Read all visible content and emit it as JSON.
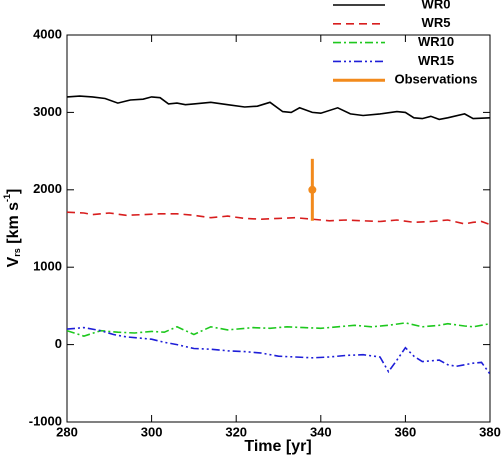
{
  "chart_data": {
    "type": "line",
    "xlabel": "Time [yr]",
    "ylabel": [
      "V",
      "rs",
      " [km s",
      "-1",
      "]"
    ],
    "xlim": [
      280,
      380
    ],
    "xticks": [
      280,
      300,
      320,
      340,
      360,
      380
    ],
    "ylim": [
      -1000,
      4000
    ],
    "yticks": [
      -1000,
      0,
      1000,
      2000,
      3000,
      4000
    ],
    "legend": "top-right",
    "series": [
      {
        "name": "WR0",
        "color": "#000000",
        "linestyle": "solid",
        "x": [
          280,
          283,
          286,
          289,
          292,
          295,
          298,
          300,
          302,
          304,
          306,
          308,
          310,
          314,
          318,
          322,
          325,
          328,
          331,
          333,
          335,
          338,
          340,
          344,
          347,
          350,
          354,
          358,
          360,
          362,
          364,
          366,
          368,
          370,
          374,
          376,
          380
        ],
        "values": [
          3200,
          3210,
          3200,
          3180,
          3120,
          3160,
          3170,
          3200,
          3190,
          3110,
          3120,
          3100,
          3110,
          3130,
          3100,
          3070,
          3080,
          3130,
          3010,
          3000,
          3060,
          3000,
          2990,
          3060,
          2980,
          2960,
          2980,
          3010,
          3000,
          2930,
          2920,
          2950,
          2910,
          2930,
          2980,
          2920,
          2930
        ]
      },
      {
        "name": "WR5",
        "color": "#d81e1e",
        "linestyle": "dashed",
        "x": [
          280,
          284,
          286,
          290,
          294,
          298,
          302,
          306,
          310,
          314,
          318,
          322,
          326,
          330,
          334,
          338,
          342,
          346,
          350,
          354,
          358,
          362,
          366,
          370,
          374,
          376,
          378,
          380
        ],
        "values": [
          1710,
          1700,
          1680,
          1700,
          1670,
          1680,
          1690,
          1690,
          1670,
          1640,
          1660,
          1630,
          1620,
          1630,
          1640,
          1620,
          1600,
          1610,
          1600,
          1590,
          1610,
          1580,
          1590,
          1610,
          1560,
          1580,
          1590,
          1550
        ]
      },
      {
        "name": "WR10",
        "color": "#1ec81e",
        "linestyle": "dashdot",
        "x": [
          280,
          284,
          288,
          292,
          296,
          300,
          303,
          306,
          310,
          314,
          318,
          324,
          328,
          332,
          336,
          340,
          344,
          348,
          352,
          356,
          360,
          364,
          368,
          370,
          374,
          376,
          380
        ],
        "values": [
          180,
          110,
          180,
          160,
          150,
          170,
          160,
          230,
          130,
          230,
          190,
          220,
          210,
          230,
          220,
          210,
          230,
          250,
          230,
          250,
          280,
          230,
          250,
          270,
          240,
          230,
          270
        ]
      },
      {
        "name": "WR15",
        "color": "#1e1ed8",
        "linestyle": "dashdotdot",
        "x": [
          280,
          284,
          288,
          291,
          294,
          298,
          300,
          303,
          306,
          310,
          314,
          318,
          322,
          326,
          330,
          334,
          338,
          342,
          346,
          350,
          354,
          356,
          358,
          360,
          362,
          364,
          368,
          370,
          372,
          376,
          378,
          380
        ],
        "values": [
          200,
          220,
          180,
          130,
          100,
          80,
          70,
          30,
          0,
          -50,
          -60,
          -80,
          -90,
          -110,
          -150,
          -160,
          -170,
          -160,
          -140,
          -130,
          -160,
          -350,
          -200,
          -40,
          -150,
          -220,
          -200,
          -260,
          -280,
          -240,
          -230,
          -380
        ]
      },
      {
        "name": "Observations",
        "color": "#f28a1c",
        "linestyle": "errorbar",
        "x": [
          338
        ],
        "values": [
          2000
        ],
        "errors": [
          400
        ]
      }
    ]
  }
}
